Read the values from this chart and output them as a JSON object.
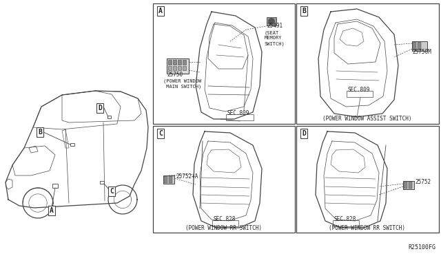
{
  "background_color": "#ffffff",
  "fig_width": 6.4,
  "fig_height": 3.72,
  "dpi": 100,
  "line_color": "#444444",
  "text_color": "#222222",
  "panel_A_label": "A",
  "panel_B_label": "B",
  "panel_C_label": "C",
  "panel_D_label": "D",
  "panel_A_part1": "25750",
  "panel_A_part1_desc1": "(POWER WINDOW",
  "panel_A_part1_desc2": " MAIN SWITCH)",
  "panel_A_part2": "25491",
  "panel_A_part2_desc1": "(SEAT",
  "panel_A_part2_desc2": "MEMORY",
  "panel_A_part2_desc3": "SWITCH)",
  "panel_A_sec": "SEC.809",
  "panel_B_part": "25750M",
  "panel_B_sec": "SEC.809",
  "panel_B_caption": "(POWER WINDOW ASSIST SWITCH)",
  "panel_C_part": "25752+A",
  "panel_C_sec": "SEC.828",
  "panel_C_caption": "(POWER WINDOW RR SWITCH)",
  "panel_D_part": "25752",
  "panel_D_sec": "SEC.828",
  "panel_D_caption": "(POWER WINDOW RR SWITCH)",
  "ref_code": "R25100FG",
  "car_labels": [
    "A",
    "B",
    "C",
    "D"
  ]
}
